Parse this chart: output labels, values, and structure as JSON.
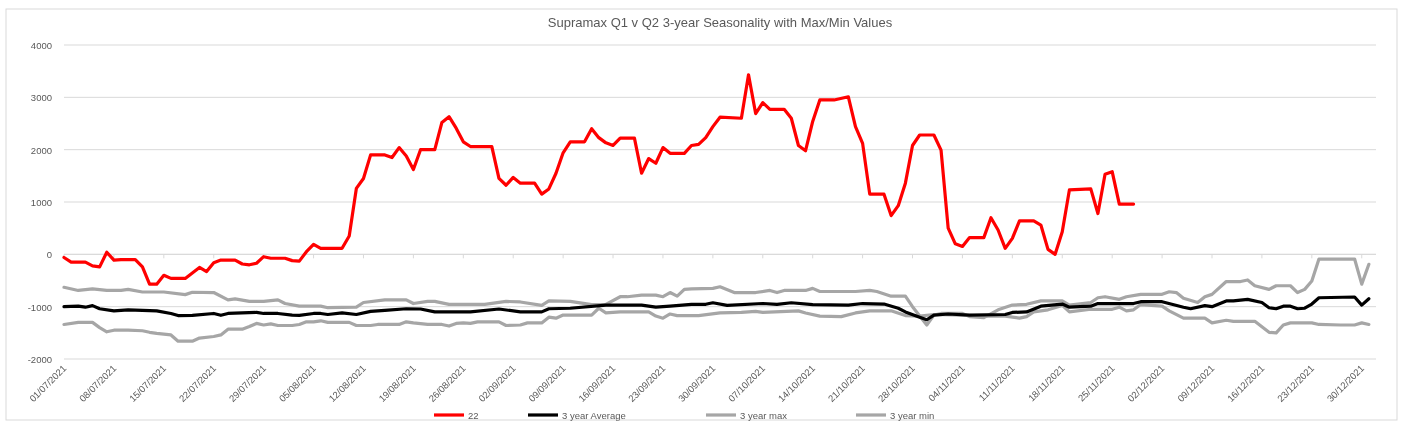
{
  "chart_data": {
    "type": "line",
    "title": "Supramax Q1 v Q2 3-year Seasonality with Max/Min Values",
    "xlim": [
      "2021-07-01",
      "2022-01-01"
    ],
    "xticks": [
      {
        "value": "2021-07-01",
        "label": "01/07/2021"
      },
      {
        "value": "2021-07-08",
        "label": "08/07/2021"
      },
      {
        "value": "2021-07-15",
        "label": "15/07/2021"
      },
      {
        "value": "2021-07-22",
        "label": "22/07/2021"
      },
      {
        "value": "2021-07-29",
        "label": "29/07/2021"
      },
      {
        "value": "2021-08-05",
        "label": "05/08/2021"
      },
      {
        "value": "2021-08-12",
        "label": "12/08/2021"
      },
      {
        "value": "2021-08-19",
        "label": "19/08/2021"
      },
      {
        "value": "2021-08-26",
        "label": "26/08/2021"
      },
      {
        "value": "2021-09-02",
        "label": "02/09/2021"
      },
      {
        "value": "2021-09-09",
        "label": "09/09/2021"
      },
      {
        "value": "2021-09-16",
        "label": "16/09/2021"
      },
      {
        "value": "2021-09-23",
        "label": "23/09/2021"
      },
      {
        "value": "2021-09-30",
        "label": "30/09/2021"
      },
      {
        "value": "2021-10-07",
        "label": "07/10/2021"
      },
      {
        "value": "2021-10-14",
        "label": "14/10/2021"
      },
      {
        "value": "2021-10-21",
        "label": "21/10/2021"
      },
      {
        "value": "2021-10-28",
        "label": "28/10/2021"
      },
      {
        "value": "2021-11-04",
        "label": "04/11/2021"
      },
      {
        "value": "2021-11-11",
        "label": "11/11/2021"
      },
      {
        "value": "2021-11-18",
        "label": "18/11/2021"
      },
      {
        "value": "2021-11-25",
        "label": "25/11/2021"
      },
      {
        "value": "2021-12-02",
        "label": "02/12/2021"
      },
      {
        "value": "2021-12-09",
        "label": "09/12/2021"
      },
      {
        "value": "2021-12-16",
        "label": "16/12/2021"
      },
      {
        "value": "2021-12-23",
        "label": "23/12/2021"
      },
      {
        "value": "2021-12-30",
        "label": "30/12/2021"
      }
    ],
    "ylim": [
      -2000,
      4000
    ],
    "yticks": [
      -2000,
      -1000,
      0,
      1000,
      2000,
      3000,
      4000
    ],
    "grid": "y",
    "legend": "bottom",
    "marker": "none",
    "line_style": "solid",
    "series": [
      {
        "name": "22",
        "color": "#ff0000",
        "x": [
          "2021-07-01",
          "2021-07-02",
          "2021-07-04",
          "2021-07-05",
          "2021-07-06",
          "2021-07-07",
          "2021-07-08",
          "2021-07-09",
          "2021-07-11",
          "2021-07-12",
          "2021-07-13",
          "2021-07-14",
          "2021-07-15",
          "2021-07-16",
          "2021-07-18",
          "2021-07-20",
          "2021-07-21",
          "2021-07-22",
          "2021-07-23",
          "2021-07-25",
          "2021-07-26",
          "2021-07-27",
          "2021-07-28",
          "2021-07-29",
          "2021-07-30",
          "2021-08-01",
          "2021-08-02",
          "2021-08-03",
          "2021-08-04",
          "2021-08-05",
          "2021-08-06",
          "2021-08-09",
          "2021-08-10",
          "2021-08-11",
          "2021-08-12",
          "2021-08-13",
          "2021-08-15",
          "2021-08-16",
          "2021-08-17",
          "2021-08-18",
          "2021-08-19",
          "2021-08-20",
          "2021-08-22",
          "2021-08-23",
          "2021-08-24",
          "2021-08-25",
          "2021-08-26",
          "2021-08-27",
          "2021-08-30",
          "2021-08-31",
          "2021-09-01",
          "2021-09-02",
          "2021-09-03",
          "2021-09-05",
          "2021-09-06",
          "2021-09-07",
          "2021-09-08",
          "2021-09-09",
          "2021-09-10",
          "2021-09-12",
          "2021-09-13",
          "2021-09-14",
          "2021-09-15",
          "2021-09-16",
          "2021-09-17",
          "2021-09-19",
          "2021-09-20",
          "2021-09-21",
          "2021-09-22",
          "2021-09-23",
          "2021-09-24",
          "2021-09-26",
          "2021-09-27",
          "2021-09-28",
          "2021-09-29",
          "2021-09-30",
          "2021-10-01",
          "2021-10-04",
          "2021-10-05",
          "2021-10-06",
          "2021-10-07",
          "2021-10-08",
          "2021-10-10",
          "2021-10-11",
          "2021-10-12",
          "2021-10-13",
          "2021-10-14",
          "2021-10-15",
          "2021-10-17",
          "2021-10-19",
          "2021-10-20",
          "2021-10-21",
          "2021-10-22",
          "2021-10-24",
          "2021-10-25",
          "2021-10-26",
          "2021-10-27",
          "2021-10-28",
          "2021-10-29",
          "2021-10-31",
          "2021-11-01",
          "2021-11-02",
          "2021-11-03",
          "2021-11-04",
          "2021-11-05",
          "2021-11-07",
          "2021-11-08",
          "2021-11-09",
          "2021-11-10",
          "2021-11-11",
          "2021-11-12",
          "2021-11-14",
          "2021-11-15",
          "2021-11-16",
          "2021-11-17",
          "2021-11-18",
          "2021-11-19",
          "2021-11-22",
          "2021-11-23",
          "2021-11-24",
          "2021-11-25",
          "2021-11-26",
          "2021-11-28"
        ],
        "values": [
          -60,
          -150,
          -150,
          -220,
          -240,
          40,
          -110,
          -100,
          -100,
          -240,
          -570,
          -570,
          -400,
          -460,
          -460,
          -250,
          -330,
          -160,
          -110,
          -110,
          -185,
          -200,
          -170,
          -45,
          -75,
          -75,
          -120,
          -130,
          50,
          190,
          115,
          115,
          350,
          1260,
          1450,
          1900,
          1900,
          1850,
          2040,
          1880,
          1620,
          2000,
          2000,
          2520,
          2630,
          2410,
          2150,
          2060,
          2060,
          1450,
          1320,
          1470,
          1360,
          1360,
          1150,
          1250,
          1550,
          1940,
          2150,
          2150,
          2400,
          2230,
          2130,
          2080,
          2220,
          2220,
          1550,
          1830,
          1740,
          2040,
          1930,
          1930,
          2080,
          2100,
          2230,
          2440,
          2620,
          2600,
          3430,
          2690,
          2900,
          2770,
          2770,
          2600,
          2080,
          1980,
          2540,
          2950,
          2950,
          3010,
          2440,
          2120,
          1150,
          1150,
          740,
          930,
          1360,
          2080,
          2280,
          2280,
          1990,
          500,
          200,
          150,
          320,
          320,
          700,
          465,
          115,
          305,
          640,
          640,
          560,
          95,
          0,
          430,
          1230,
          1250,
          780,
          1530,
          1580,
          960,
          960
        ]
      },
      {
        "name": "3 year Average",
        "color": "#000000",
        "x": [
          "2021-07-01",
          "2021-07-03",
          "2021-07-04",
          "2021-07-05",
          "2021-07-06",
          "2021-07-08",
          "2021-07-10",
          "2021-07-12",
          "2021-07-14",
          "2021-07-16",
          "2021-07-17",
          "2021-07-19",
          "2021-07-22",
          "2021-07-23",
          "2021-07-24",
          "2021-07-28",
          "2021-07-29",
          "2021-07-31",
          "2021-08-02",
          "2021-08-03",
          "2021-08-05",
          "2021-08-06",
          "2021-08-07",
          "2021-08-09",
          "2021-08-11",
          "2021-08-13",
          "2021-08-15",
          "2021-08-18",
          "2021-08-20",
          "2021-08-22",
          "2021-08-24",
          "2021-08-27",
          "2021-08-31",
          "2021-09-03",
          "2021-09-06",
          "2021-09-07",
          "2021-09-10",
          "2021-09-15",
          "2021-09-20",
          "2021-09-22",
          "2021-09-24",
          "2021-09-27",
          "2021-09-29",
          "2021-09-30",
          "2021-10-02",
          "2021-10-07",
          "2021-10-09",
          "2021-10-11",
          "2021-10-14",
          "2021-10-19",
          "2021-10-21",
          "2021-10-24",
          "2021-10-26",
          "2021-10-27",
          "2021-10-29",
          "2021-10-30",
          "2021-10-31",
          "2021-11-02",
          "2021-11-05",
          "2021-11-10",
          "2021-11-11",
          "2021-11-13",
          "2021-11-15",
          "2021-11-18",
          "2021-11-19",
          "2021-11-22",
          "2021-11-23",
          "2021-11-28",
          "2021-11-29",
          "2021-12-02",
          "2021-12-05",
          "2021-12-06",
          "2021-12-08",
          "2021-12-09",
          "2021-12-11",
          "2021-12-12",
          "2021-12-14",
          "2021-12-16",
          "2021-12-17",
          "2021-12-18",
          "2021-12-19",
          "2021-12-20",
          "2021-12-21",
          "2021-12-22",
          "2021-12-23",
          "2021-12-24",
          "2021-12-29",
          "2021-12-30",
          "2021-12-31"
        ],
        "values": [
          -1000,
          -990,
          -1010,
          -980,
          -1040,
          -1080,
          -1060,
          -1070,
          -1080,
          -1130,
          -1170,
          -1165,
          -1130,
          -1165,
          -1130,
          -1110,
          -1130,
          -1130,
          -1160,
          -1165,
          -1130,
          -1130,
          -1150,
          -1120,
          -1150,
          -1090,
          -1070,
          -1040,
          -1045,
          -1100,
          -1100,
          -1100,
          -1045,
          -1100,
          -1100,
          -1040,
          -1030,
          -970,
          -970,
          -1010,
          -990,
          -955,
          -955,
          -925,
          -975,
          -940,
          -955,
          -925,
          -960,
          -970,
          -940,
          -950,
          -1030,
          -1100,
          -1200,
          -1250,
          -1160,
          -1140,
          -1160,
          -1150,
          -1110,
          -1100,
          -990,
          -950,
          -1010,
          -990,
          -940,
          -940,
          -905,
          -905,
          -1010,
          -1040,
          -980,
          -1000,
          -890,
          -890,
          -860,
          -920,
          -1020,
          -1040,
          -990,
          -990,
          -1040,
          -1030,
          -950,
          -830,
          -815,
          -970,
          -850
        ]
      },
      {
        "name": "3 year max",
        "color": "#a6a6a6",
        "x": [
          "2021-07-01",
          "2021-07-03",
          "2021-07-05",
          "2021-07-07",
          "2021-07-09",
          "2021-07-10",
          "2021-07-12",
          "2021-07-15",
          "2021-07-18",
          "2021-07-19",
          "2021-07-22",
          "2021-07-24",
          "2021-07-25",
          "2021-07-27",
          "2021-07-29",
          "2021-07-31",
          "2021-08-01",
          "2021-08-03",
          "2021-08-06",
          "2021-08-07",
          "2021-08-11",
          "2021-08-12",
          "2021-08-15",
          "2021-08-18",
          "2021-08-19",
          "2021-08-21",
          "2021-08-22",
          "2021-08-24",
          "2021-08-26",
          "2021-08-29",
          "2021-09-01",
          "2021-09-03",
          "2021-09-06",
          "2021-09-07",
          "2021-09-10",
          "2021-09-13",
          "2021-09-15",
          "2021-09-17",
          "2021-09-18",
          "2021-09-20",
          "2021-09-22",
          "2021-09-23",
          "2021-09-24",
          "2021-09-25",
          "2021-09-26",
          "2021-09-27",
          "2021-09-30",
          "2021-10-01",
          "2021-10-03",
          "2021-10-06",
          "2021-10-08",
          "2021-10-09",
          "2021-10-10",
          "2021-10-13",
          "2021-10-14",
          "2021-10-15",
          "2021-10-20",
          "2021-10-22",
          "2021-10-23",
          "2021-10-25",
          "2021-10-27",
          "2021-10-28",
          "2021-10-30",
          "2021-10-31",
          "2021-11-01",
          "2021-11-04",
          "2021-11-05",
          "2021-11-07",
          "2021-11-09",
          "2021-11-11",
          "2021-11-13",
          "2021-11-15",
          "2021-11-18",
          "2021-11-19",
          "2021-11-22",
          "2021-11-23",
          "2021-11-24",
          "2021-11-26",
          "2021-11-27",
          "2021-11-29",
          "2021-12-02",
          "2021-12-03",
          "2021-12-04",
          "2021-12-05",
          "2021-12-07",
          "2021-12-08",
          "2021-12-09",
          "2021-12-11",
          "2021-12-13",
          "2021-12-14",
          "2021-12-15",
          "2021-12-17",
          "2021-12-18",
          "2021-12-20",
          "2021-12-21",
          "2021-12-22",
          "2021-12-23",
          "2021-12-24",
          "2021-12-29",
          "2021-12-30",
          "2021-12-31"
        ],
        "values": [
          -630,
          -690,
          -660,
          -690,
          -690,
          -670,
          -720,
          -720,
          -770,
          -725,
          -730,
          -870,
          -850,
          -900,
          -900,
          -870,
          -940,
          -990,
          -990,
          -1020,
          -1010,
          -920,
          -870,
          -870,
          -940,
          -900,
          -900,
          -955,
          -955,
          -955,
          -900,
          -910,
          -975,
          -890,
          -900,
          -960,
          -955,
          -810,
          -810,
          -780,
          -780,
          -810,
          -730,
          -800,
          -670,
          -660,
          -650,
          -620,
          -730,
          -730,
          -690,
          -730,
          -690,
          -690,
          -650,
          -710,
          -710,
          -690,
          -710,
          -800,
          -800,
          -1000,
          -1350,
          -1160,
          -1130,
          -1130,
          -1190,
          -1210,
          -1060,
          -970,
          -955,
          -890,
          -890,
          -970,
          -920,
          -830,
          -810,
          -860,
          -810,
          -765,
          -765,
          -715,
          -730,
          -840,
          -920,
          -810,
          -765,
          -520,
          -520,
          -490,
          -600,
          -670,
          -600,
          -600,
          -730,
          -670,
          -510,
          -90,
          -90,
          -570,
          -190
        ]
      },
      {
        "name": "3 year min",
        "color": "#a6a6a6",
        "x": [
          "2021-07-01",
          "2021-07-03",
          "2021-07-05",
          "2021-07-06",
          "2021-07-07",
          "2021-07-08",
          "2021-07-10",
          "2021-07-12",
          "2021-07-13",
          "2021-07-14",
          "2021-07-16",
          "2021-07-17",
          "2021-07-19",
          "2021-07-20",
          "2021-07-22",
          "2021-07-23",
          "2021-07-24",
          "2021-07-26",
          "2021-07-27",
          "2021-07-28",
          "2021-07-29",
          "2021-07-30",
          "2021-07-31",
          "2021-08-02",
          "2021-08-03",
          "2021-08-04",
          "2021-08-05",
          "2021-08-06",
          "2021-08-07",
          "2021-08-10",
          "2021-08-11",
          "2021-08-13",
          "2021-08-14",
          "2021-08-17",
          "2021-08-18",
          "2021-08-19",
          "2021-08-21",
          "2021-08-23",
          "2021-08-24",
          "2021-08-25",
          "2021-08-26",
          "2021-08-27",
          "2021-08-28",
          "2021-08-31",
          "2021-09-01",
          "2021-09-03",
          "2021-09-04",
          "2021-09-06",
          "2021-09-07",
          "2021-09-08",
          "2021-09-09",
          "2021-09-13",
          "2021-09-14",
          "2021-09-15",
          "2021-09-17",
          "2021-09-21",
          "2021-09-22",
          "2021-09-23",
          "2021-09-24",
          "2021-09-25",
          "2021-09-28",
          "2021-10-01",
          "2021-10-04",
          "2021-10-06",
          "2021-10-07",
          "2021-10-12",
          "2021-10-13",
          "2021-10-15",
          "2021-10-18",
          "2021-10-20",
          "2021-10-22",
          "2021-10-25",
          "2021-10-27",
          "2021-10-29",
          "2021-10-31",
          "2021-11-04",
          "2021-11-07",
          "2021-11-10",
          "2021-11-12",
          "2021-11-13",
          "2021-11-14",
          "2021-11-16",
          "2021-11-18",
          "2021-11-19",
          "2021-11-22",
          "2021-11-25",
          "2021-11-26",
          "2021-11-27",
          "2021-11-28",
          "2021-11-29",
          "2021-12-02",
          "2021-12-03",
          "2021-12-05",
          "2021-12-08",
          "2021-12-09",
          "2021-12-11",
          "2021-12-12",
          "2021-12-15",
          "2021-12-17",
          "2021-12-18",
          "2021-12-19",
          "2021-12-20",
          "2021-12-23",
          "2021-12-24",
          "2021-12-27",
          "2021-12-29",
          "2021-12-30",
          "2021-12-31"
        ],
        "values": [
          -1340,
          -1300,
          -1300,
          -1400,
          -1480,
          -1450,
          -1450,
          -1460,
          -1490,
          -1510,
          -1540,
          -1660,
          -1660,
          -1600,
          -1570,
          -1540,
          -1430,
          -1430,
          -1380,
          -1320,
          -1350,
          -1330,
          -1360,
          -1360,
          -1340,
          -1290,
          -1290,
          -1270,
          -1300,
          -1300,
          -1360,
          -1360,
          -1340,
          -1340,
          -1290,
          -1310,
          -1340,
          -1340,
          -1370,
          -1320,
          -1310,
          -1320,
          -1290,
          -1290,
          -1360,
          -1350,
          -1310,
          -1310,
          -1200,
          -1220,
          -1160,
          -1160,
          -1030,
          -1120,
          -1100,
          -1100,
          -1180,
          -1220,
          -1140,
          -1170,
          -1170,
          -1120,
          -1110,
          -1090,
          -1110,
          -1080,
          -1120,
          -1180,
          -1190,
          -1120,
          -1080,
          -1080,
          -1170,
          -1180,
          -1150,
          -1160,
          -1180,
          -1180,
          -1220,
          -1190,
          -1100,
          -1060,
          -975,
          -1100,
          -1050,
          -1050,
          -1010,
          -1080,
          -1060,
          -960,
          -990,
          -1080,
          -1220,
          -1220,
          -1310,
          -1260,
          -1280,
          -1280,
          -1490,
          -1500,
          -1350,
          -1310,
          -1310,
          -1340,
          -1350,
          -1350,
          -1310,
          -1340
        ]
      }
    ]
  }
}
